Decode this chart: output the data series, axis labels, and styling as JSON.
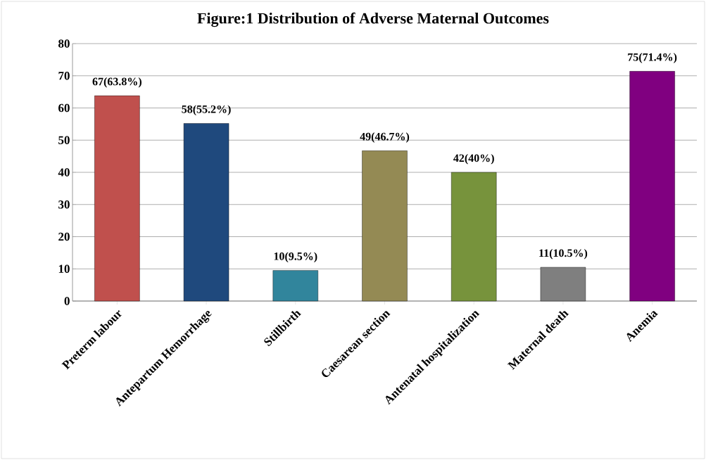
{
  "chart_data": {
    "type": "bar",
    "title": "Figure:1 Distribution of Adverse Maternal Outcomes",
    "categories": [
      "Preterm labour",
      "Antepartum Hemorrhage",
      "Stillbirth",
      "Caesarean section",
      "Antenatal hospitalization",
      "Maternal death",
      "Anemia"
    ],
    "values": [
      63.8,
      55.2,
      9.5,
      46.7,
      40,
      10.5,
      71.4
    ],
    "value_labels": [
      "67(63.8%)",
      "58(55.2%)",
      "10(9.5%)",
      "49(46.7%)",
      "42(40%)",
      "11(10.5%)",
      "75(71.4%)"
    ],
    "colors": [
      "#c0504d",
      "#1f497d",
      "#31859c",
      "#948a54",
      "#77933c",
      "#7f7f7f",
      "#800080"
    ],
    "ylim": [
      0,
      80
    ],
    "yticks": [
      0,
      10,
      20,
      30,
      40,
      50,
      60,
      70,
      80
    ],
    "grid": "y"
  }
}
